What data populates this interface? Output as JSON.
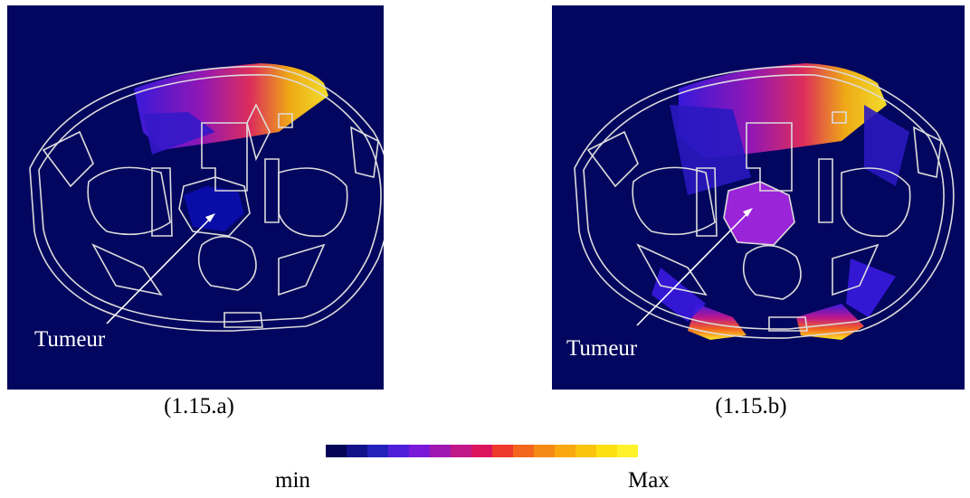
{
  "figure": {
    "panel_a": {
      "caption": "(1.15.a)",
      "pointer_label": "Tumeur"
    },
    "panel_b": {
      "caption": "(1.15.b)",
      "pointer_label": "Tumeur"
    },
    "colorbar": {
      "min_label": "min",
      "max_label": "Max",
      "colors": [
        "#050555",
        "#12128a",
        "#2222bb",
        "#5020d8",
        "#7a1ad8",
        "#a018b0",
        "#c01888",
        "#dc1460",
        "#ee3a2a",
        "#f4661e",
        "#f78a16",
        "#f9a810",
        "#fbc40c",
        "#fde010",
        "#fff22a"
      ]
    },
    "colors": {
      "background": "#02065e",
      "contour": "#dcdcdc",
      "arrow": "#ffffff"
    }
  }
}
